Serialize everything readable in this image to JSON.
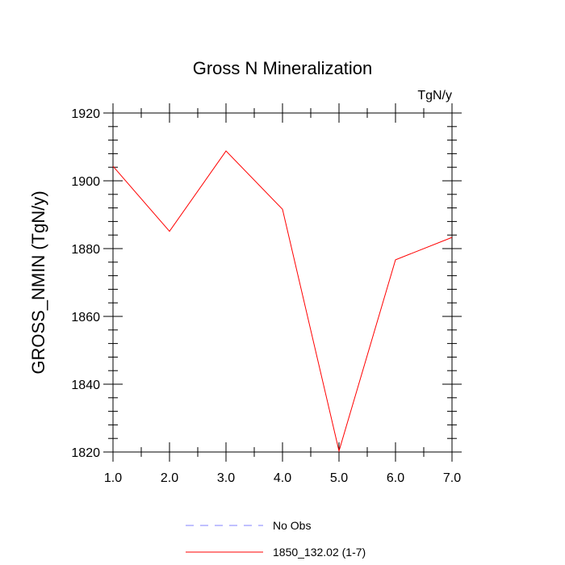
{
  "chart_data": {
    "type": "line",
    "title": "Gross N Mineralization",
    "units_label": "TgN/y",
    "xlabel": "",
    "ylabel": "GROSS_NMIN  (TgN/y)",
    "xlim": [
      1.0,
      7.0
    ],
    "ylim": [
      1820,
      1920
    ],
    "x_ticks": [
      1.0,
      2.0,
      3.0,
      4.0,
      5.0,
      6.0,
      7.0
    ],
    "x_tick_labels": [
      "1.0",
      "2.0",
      "3.0",
      "4.0",
      "5.0",
      "6.0",
      "7.0"
    ],
    "y_ticks": [
      1820,
      1840,
      1860,
      1880,
      1900,
      1920
    ],
    "y_tick_labels": [
      "1820",
      "1840",
      "1860",
      "1880",
      "1900",
      "1920"
    ],
    "series": [
      {
        "name": "1850_132.02 (1-7)",
        "color": "#ff0000",
        "x": [
          1,
          2,
          3,
          4,
          5,
          6,
          7
        ],
        "values": [
          1904.3,
          1885.1,
          1908.8,
          1891.6,
          1820.3,
          1876.7,
          1883.3
        ]
      }
    ],
    "legend": [
      {
        "label": "No Obs",
        "style": "dashed",
        "color": "#8080ff"
      },
      {
        "label": "1850_132.02 (1-7)",
        "style": "solid",
        "color": "#ff0000"
      }
    ],
    "legend_position": "bottom"
  }
}
